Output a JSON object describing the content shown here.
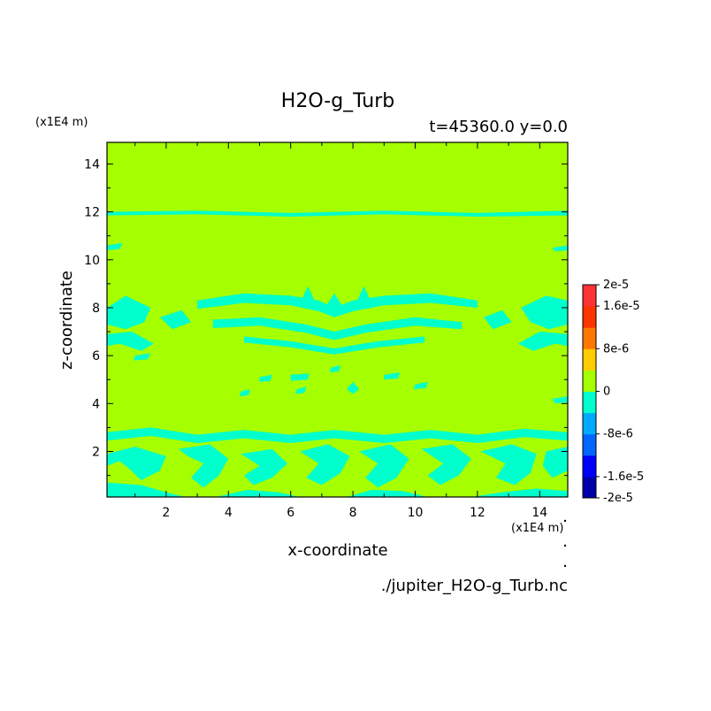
{
  "chart_data": {
    "type": "heatmap",
    "title": "H2O-g_Turb",
    "subtitle": "t=45360.0 y=0.0",
    "xlabel": "x-coordinate",
    "ylabel": "z-coordinate",
    "x_unit": "(x1E4 m)",
    "y_unit": "(x1E4 m)",
    "footer": "./jupiter_H2O-g_Turb.nc",
    "xlim": [
      0.1,
      14.9
    ],
    "ylim": [
      0.1,
      14.9
    ],
    "xticks": [
      2,
      4,
      6,
      8,
      10,
      12,
      14
    ],
    "yticks": [
      2,
      4,
      6,
      8,
      10,
      12,
      14
    ],
    "background_value": 0,
    "background_color": "#a6ff00",
    "anomaly_color": "#00ffcc",
    "colorbar": {
      "colors": [
        "#0000aa",
        "#0000ff",
        "#0066ff",
        "#00aaff",
        "#00ffcc",
        "#a6ff00",
        "#ffcc00",
        "#ff7700",
        "#ff3300",
        "#ff3333"
      ],
      "labels": [
        "2e-5",
        "1.6e-5",
        "8e-6",
        "0",
        "-8e-6",
        "-1.6e-5",
        "-2e-5"
      ],
      "label_values": [
        2e-05,
        1.6e-05,
        8e-06,
        0,
        -8e-06,
        -1.6e-05,
        -2e-05
      ]
    },
    "regions": [
      {
        "name": "band-z12",
        "points": [
          [
            0.1,
            12.0
          ],
          [
            3,
            12.05
          ],
          [
            6,
            11.95
          ],
          [
            9,
            12.05
          ],
          [
            12,
            11.95
          ],
          [
            14.9,
            12.05
          ],
          [
            14.9,
            11.85
          ],
          [
            12,
            11.8
          ],
          [
            9,
            11.9
          ],
          [
            6,
            11.8
          ],
          [
            3,
            11.9
          ],
          [
            0.1,
            11.85
          ]
        ]
      },
      {
        "name": "blob-left-10",
        "points": [
          [
            0.1,
            10.6
          ],
          [
            0.6,
            10.7
          ],
          [
            0.5,
            10.45
          ],
          [
            0.1,
            10.4
          ]
        ]
      },
      {
        "name": "blob-right-10",
        "points": [
          [
            14.4,
            10.5
          ],
          [
            14.9,
            10.6
          ],
          [
            14.9,
            10.4
          ],
          [
            14.5,
            10.35
          ]
        ]
      },
      {
        "name": "arc-upper",
        "points": [
          [
            3.0,
            8.3
          ],
          [
            4.5,
            8.6
          ],
          [
            6.0,
            8.5
          ],
          [
            6.9,
            8.3
          ],
          [
            7.4,
            8.0
          ],
          [
            8.0,
            8.3
          ],
          [
            9.0,
            8.5
          ],
          [
            10.5,
            8.6
          ],
          [
            12.0,
            8.3
          ],
          [
            12.0,
            8.0
          ],
          [
            10.5,
            8.2
          ],
          [
            9.0,
            8.1
          ],
          [
            8.0,
            7.85
          ],
          [
            7.4,
            7.6
          ],
          [
            6.9,
            7.85
          ],
          [
            6.0,
            8.1
          ],
          [
            4.5,
            8.2
          ],
          [
            3.0,
            7.95
          ]
        ]
      },
      {
        "name": "arc-mid",
        "points": [
          [
            3.5,
            7.5
          ],
          [
            5.0,
            7.6
          ],
          [
            6.5,
            7.3
          ],
          [
            7.4,
            7.0
          ],
          [
            8.4,
            7.3
          ],
          [
            10.0,
            7.6
          ],
          [
            11.5,
            7.4
          ],
          [
            11.5,
            7.1
          ],
          [
            10.0,
            7.25
          ],
          [
            8.4,
            6.95
          ],
          [
            7.4,
            6.65
          ],
          [
            6.5,
            6.95
          ],
          [
            5.0,
            7.25
          ],
          [
            3.5,
            7.15
          ]
        ]
      },
      {
        "name": "arc-lower",
        "points": [
          [
            4.5,
            6.8
          ],
          [
            6.0,
            6.6
          ],
          [
            7.4,
            6.3
          ],
          [
            8.8,
            6.6
          ],
          [
            10.3,
            6.8
          ],
          [
            10.3,
            6.55
          ],
          [
            8.8,
            6.35
          ],
          [
            7.4,
            6.05
          ],
          [
            6.0,
            6.35
          ],
          [
            4.5,
            6.55
          ]
        ]
      },
      {
        "name": "spike-left",
        "points": [
          [
            6.3,
            8.2
          ],
          [
            6.55,
            8.9
          ],
          [
            6.8,
            8.2
          ]
        ]
      },
      {
        "name": "spike-center",
        "points": [
          [
            7.1,
            8.0
          ],
          [
            7.4,
            8.6
          ],
          [
            7.7,
            8.0
          ]
        ]
      },
      {
        "name": "spike-right",
        "points": [
          [
            8.1,
            8.2
          ],
          [
            8.35,
            8.9
          ],
          [
            8.6,
            8.2
          ]
        ]
      },
      {
        "name": "edge-left-upper",
        "points": [
          [
            0.1,
            8.0
          ],
          [
            0.7,
            8.5
          ],
          [
            1.5,
            8.0
          ],
          [
            1.3,
            7.4
          ],
          [
            0.7,
            7.1
          ],
          [
            0.1,
            7.3
          ]
        ]
      },
      {
        "name": "edge-left-lower",
        "points": [
          [
            0.1,
            6.9
          ],
          [
            0.9,
            7.0
          ],
          [
            1.6,
            6.5
          ],
          [
            1.2,
            6.2
          ],
          [
            0.5,
            6.5
          ],
          [
            0.1,
            6.4
          ]
        ]
      },
      {
        "name": "edge-left-patch",
        "points": [
          [
            1.8,
            7.6
          ],
          [
            2.5,
            7.9
          ],
          [
            2.8,
            7.4
          ],
          [
            2.2,
            7.1
          ]
        ]
      },
      {
        "name": "edge-right-upper",
        "points": [
          [
            14.9,
            8.3
          ],
          [
            14.2,
            8.5
          ],
          [
            13.4,
            8.0
          ],
          [
            13.7,
            7.4
          ],
          [
            14.3,
            7.1
          ],
          [
            14.9,
            7.3
          ]
        ]
      },
      {
        "name": "edge-right-lower",
        "points": [
          [
            14.9,
            6.9
          ],
          [
            14.0,
            7.0
          ],
          [
            13.3,
            6.5
          ],
          [
            13.8,
            6.2
          ],
          [
            14.5,
            6.5
          ],
          [
            14.9,
            6.4
          ]
        ]
      },
      {
        "name": "edge-right-patch",
        "points": [
          [
            12.2,
            7.6
          ],
          [
            12.8,
            7.9
          ],
          [
            13.1,
            7.4
          ],
          [
            12.5,
            7.1
          ]
        ]
      },
      {
        "name": "small-left-6",
        "points": [
          [
            1.0,
            6.0
          ],
          [
            1.5,
            6.1
          ],
          [
            1.4,
            5.85
          ],
          [
            0.95,
            5.8
          ]
        ]
      },
      {
        "name": "dot-1",
        "points": [
          [
            5.0,
            5.1
          ],
          [
            5.4,
            5.2
          ],
          [
            5.35,
            4.95
          ],
          [
            5.0,
            4.9
          ]
        ]
      },
      {
        "name": "dot-2",
        "points": [
          [
            6.0,
            5.2
          ],
          [
            6.6,
            5.25
          ],
          [
            6.55,
            5.0
          ],
          [
            6.0,
            4.95
          ]
        ]
      },
      {
        "name": "dot-3",
        "points": [
          [
            6.2,
            4.6
          ],
          [
            6.5,
            4.7
          ],
          [
            6.45,
            4.45
          ],
          [
            6.15,
            4.4
          ]
        ]
      },
      {
        "name": "dot-4",
        "points": [
          [
            7.3,
            5.5
          ],
          [
            7.6,
            5.6
          ],
          [
            7.55,
            5.35
          ],
          [
            7.25,
            5.3
          ]
        ]
      },
      {
        "name": "dot-5",
        "points": [
          [
            7.8,
            4.6
          ],
          [
            8.0,
            4.9
          ],
          [
            8.2,
            4.6
          ],
          [
            8.0,
            4.4
          ]
        ]
      },
      {
        "name": "dot-6",
        "points": [
          [
            9.0,
            5.2
          ],
          [
            9.5,
            5.3
          ],
          [
            9.45,
            5.05
          ],
          [
            9.0,
            5.0
          ]
        ]
      },
      {
        "name": "dot-7",
        "points": [
          [
            10.0,
            4.8
          ],
          [
            10.4,
            4.9
          ],
          [
            10.35,
            4.65
          ],
          [
            9.95,
            4.6
          ]
        ]
      },
      {
        "name": "dot-8",
        "points": [
          [
            4.4,
            4.5
          ],
          [
            4.7,
            4.6
          ],
          [
            4.65,
            4.35
          ],
          [
            4.35,
            4.3
          ]
        ]
      },
      {
        "name": "dot-9",
        "points": [
          [
            14.4,
            4.2
          ],
          [
            14.9,
            4.3
          ],
          [
            14.9,
            4.05
          ],
          [
            14.5,
            4.0
          ]
        ]
      },
      {
        "name": "lower-band-top",
        "points": [
          [
            0.1,
            2.8
          ],
          [
            1.5,
            3.0
          ],
          [
            3.0,
            2.7
          ],
          [
            4.5,
            2.9
          ],
          [
            6.0,
            2.7
          ],
          [
            7.4,
            2.9
          ],
          [
            9.0,
            2.7
          ],
          [
            10.5,
            2.9
          ],
          [
            12.0,
            2.7
          ],
          [
            13.5,
            2.95
          ],
          [
            14.9,
            2.8
          ],
          [
            14.9,
            2.45
          ],
          [
            13.5,
            2.6
          ],
          [
            12.0,
            2.35
          ],
          [
            10.5,
            2.55
          ],
          [
            9.0,
            2.35
          ],
          [
            7.4,
            2.55
          ],
          [
            6.0,
            2.35
          ],
          [
            4.5,
            2.55
          ],
          [
            3.0,
            2.35
          ],
          [
            1.5,
            2.65
          ],
          [
            0.1,
            2.45
          ]
        ]
      },
      {
        "name": "lower-swirl-1",
        "points": [
          [
            0.1,
            1.9
          ],
          [
            1.0,
            2.2
          ],
          [
            2.0,
            1.8
          ],
          [
            1.8,
            1.2
          ],
          [
            1.2,
            0.8
          ],
          [
            0.8,
            1.3
          ],
          [
            0.5,
            1.6
          ],
          [
            0.1,
            1.4
          ]
        ]
      },
      {
        "name": "lower-swirl-2",
        "points": [
          [
            2.4,
            2.1
          ],
          [
            3.4,
            2.3
          ],
          [
            4.0,
            1.7
          ],
          [
            3.7,
            1.0
          ],
          [
            3.2,
            0.5
          ],
          [
            2.8,
            0.9
          ],
          [
            3.2,
            1.5
          ],
          [
            2.7,
            1.8
          ]
        ]
      },
      {
        "name": "lower-swirl-3",
        "points": [
          [
            4.4,
            1.9
          ],
          [
            5.4,
            2.1
          ],
          [
            5.9,
            1.5
          ],
          [
            5.4,
            0.9
          ],
          [
            4.8,
            0.6
          ],
          [
            4.5,
            1.0
          ],
          [
            5.0,
            1.4
          ]
        ]
      },
      {
        "name": "lower-swirl-4",
        "points": [
          [
            6.3,
            2.0
          ],
          [
            7.2,
            2.3
          ],
          [
            7.9,
            1.8
          ],
          [
            7.6,
            1.1
          ],
          [
            7.0,
            0.6
          ],
          [
            6.5,
            0.9
          ],
          [
            6.9,
            1.5
          ]
        ]
      },
      {
        "name": "lower-swirl-5",
        "points": [
          [
            8.2,
            2.0
          ],
          [
            9.2,
            2.3
          ],
          [
            9.8,
            1.7
          ],
          [
            9.4,
            0.9
          ],
          [
            8.8,
            0.5
          ],
          [
            8.4,
            0.9
          ],
          [
            8.8,
            1.5
          ]
        ]
      },
      {
        "name": "lower-swirl-6",
        "points": [
          [
            10.2,
            2.1
          ],
          [
            11.2,
            2.3
          ],
          [
            11.8,
            1.7
          ],
          [
            11.4,
            1.0
          ],
          [
            10.8,
            0.6
          ],
          [
            10.4,
            1.0
          ],
          [
            10.9,
            1.5
          ]
        ]
      },
      {
        "name": "lower-swirl-7",
        "points": [
          [
            12.1,
            2.0
          ],
          [
            13.1,
            2.3
          ],
          [
            13.9,
            1.9
          ],
          [
            13.7,
            1.1
          ],
          [
            13.2,
            0.6
          ],
          [
            12.6,
            0.9
          ],
          [
            12.9,
            1.5
          ]
        ]
      },
      {
        "name": "lower-swirl-8",
        "points": [
          [
            14.2,
            2.0
          ],
          [
            14.9,
            2.2
          ],
          [
            14.9,
            1.2
          ],
          [
            14.4,
            0.9
          ],
          [
            14.1,
            1.4
          ]
        ]
      },
      {
        "name": "bottom-strip-1",
        "points": [
          [
            0.1,
            0.7
          ],
          [
            1.2,
            0.6
          ],
          [
            2.0,
            0.3
          ],
          [
            2.6,
            0.1
          ],
          [
            0.1,
            0.1
          ]
        ]
      },
      {
        "name": "bottom-strip-2",
        "points": [
          [
            3.6,
            0.1
          ],
          [
            4.6,
            0.4
          ],
          [
            5.6,
            0.3
          ],
          [
            6.3,
            0.1
          ]
        ]
      },
      {
        "name": "bottom-strip-3",
        "points": [
          [
            7.8,
            0.1
          ],
          [
            8.6,
            0.4
          ],
          [
            9.6,
            0.35
          ],
          [
            10.4,
            0.1
          ]
        ]
      },
      {
        "name": "bottom-strip-4",
        "points": [
          [
            11.8,
            0.1
          ],
          [
            12.8,
            0.3
          ],
          [
            13.9,
            0.45
          ],
          [
            14.9,
            0.35
          ],
          [
            14.9,
            0.1
          ]
        ]
      }
    ]
  }
}
